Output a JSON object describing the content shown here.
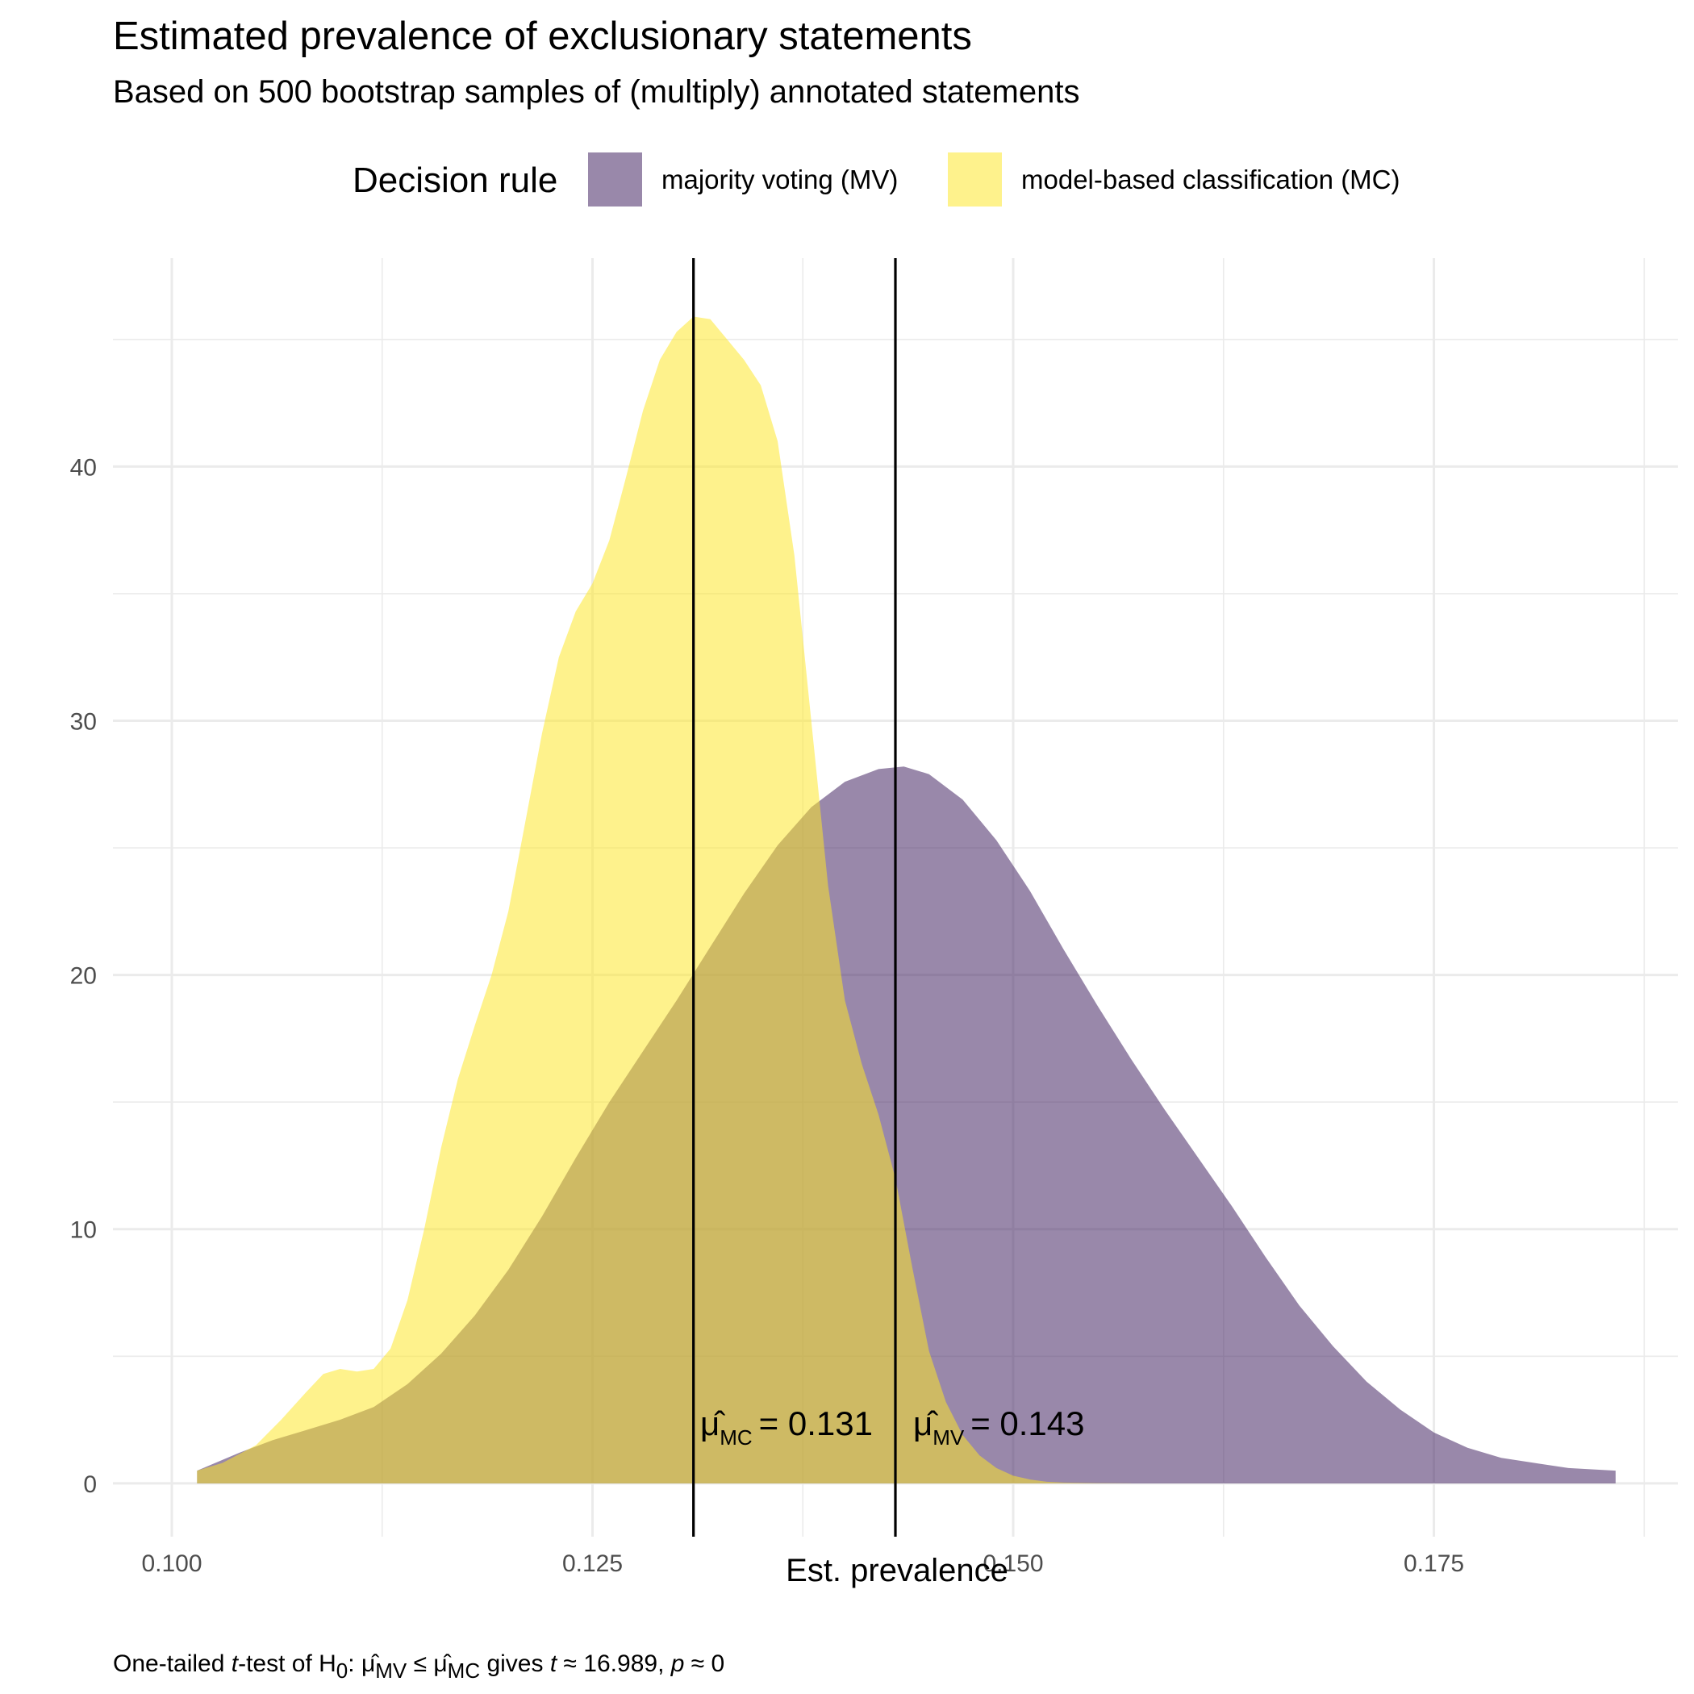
{
  "chart_data": {
    "type": "area",
    "title": "Estimated prevalence of exclusionary statements",
    "subtitle": "Based on 500 bootstrap samples of (multiply) annotated statements",
    "xlabel": "Est. prevalence",
    "ylabel": "",
    "xlim": [
      0.0965,
      0.1895
    ],
    "ylim": [
      -2.1,
      48.2
    ],
    "x_ticks": [
      0.1,
      0.125,
      0.15,
      0.175
    ],
    "x_tick_labels": [
      "0.100",
      "0.125",
      "0.150",
      "0.175"
    ],
    "y_ticks": [
      0,
      10,
      20,
      30,
      40
    ],
    "y_tick_labels": [
      "0",
      "10",
      "20",
      "30",
      "40"
    ],
    "grid": true,
    "legend": {
      "title": "Decision rule",
      "position": "top",
      "items": [
        "majority voting (MV)",
        "model-based classification (MC)"
      ]
    },
    "series": [
      {
        "name": "majority voting (MV)",
        "color": "#3f1f5e",
        "opacity": 0.53,
        "x": [
          0.1015,
          0.104,
          0.106,
          0.108,
          0.11,
          0.112,
          0.114,
          0.116,
          0.118,
          0.12,
          0.122,
          0.124,
          0.126,
          0.128,
          0.13,
          0.132,
          0.134,
          0.136,
          0.138,
          0.14,
          0.142,
          0.1435,
          0.145,
          0.147,
          0.149,
          0.151,
          0.153,
          0.155,
          0.157,
          0.159,
          0.161,
          0.163,
          0.165,
          0.167,
          0.169,
          0.171,
          0.173,
          0.175,
          0.177,
          0.179,
          0.181,
          0.183,
          0.1858
        ],
        "y": [
          0.5,
          1.2,
          1.7,
          2.1,
          2.5,
          3.0,
          3.9,
          5.1,
          6.6,
          8.4,
          10.5,
          12.8,
          15.0,
          17.0,
          19.0,
          21.1,
          23.2,
          25.1,
          26.6,
          27.6,
          28.1,
          28.2,
          27.9,
          26.9,
          25.3,
          23.3,
          21.0,
          18.8,
          16.7,
          14.7,
          12.8,
          10.9,
          8.9,
          7.0,
          5.4,
          4.0,
          2.9,
          2.0,
          1.4,
          1.0,
          0.8,
          0.6,
          0.5
        ]
      },
      {
        "name": "model-based classification (MC)",
        "color": "#fde725",
        "opacity": 0.53,
        "x": [
          0.1015,
          0.103,
          0.105,
          0.1065,
          0.108,
          0.109,
          0.11,
          0.111,
          0.112,
          0.113,
          0.114,
          0.115,
          0.116,
          0.117,
          0.118,
          0.119,
          0.12,
          0.121,
          0.122,
          0.123,
          0.124,
          0.125,
          0.126,
          0.127,
          0.128,
          0.129,
          0.13,
          0.131,
          0.132,
          0.133,
          0.134,
          0.135,
          0.136,
          0.137,
          0.138,
          0.139,
          0.14,
          0.141,
          0.142,
          0.143,
          0.144,
          0.145,
          0.146,
          0.147,
          0.148,
          0.149,
          0.15,
          0.151,
          0.152,
          0.153,
          0.155,
          0.157
        ],
        "y": [
          0.5,
          0.8,
          1.5,
          2.5,
          3.6,
          4.3,
          4.5,
          4.4,
          4.5,
          5.3,
          7.2,
          10.0,
          13.2,
          15.9,
          18.0,
          20.0,
          22.5,
          26.0,
          29.5,
          32.5,
          34.3,
          35.4,
          37.1,
          39.6,
          42.2,
          44.2,
          45.3,
          45.9,
          45.8,
          45.0,
          44.2,
          43.2,
          41.0,
          36.5,
          30.0,
          23.5,
          19.0,
          16.5,
          14.5,
          12.0,
          8.5,
          5.2,
          3.2,
          1.9,
          1.1,
          0.6,
          0.3,
          0.15,
          0.06,
          0.03,
          0.01,
          0.0
        ]
      }
    ],
    "vlines": [
      {
        "x": 0.131,
        "label": "MC",
        "value": "0.131"
      },
      {
        "x": 0.143,
        "label": "MV",
        "value": "0.143"
      }
    ]
  },
  "annotations": {
    "mc_symbol": "μ̂",
    "mc_sub": "MC",
    "mc_eq": "= 0.131",
    "mv_symbol": "μ̂",
    "mv_sub": "MV",
    "mv_eq": "= 0.143"
  },
  "caption": {
    "part1": "One-tailed ",
    "t1": "t",
    "part2": "-test of H",
    "sub0": "0",
    "part3": ":  ",
    "mu1": "μ̂",
    "mv": "MV",
    "leq": " ≤ ",
    "mu2": "μ̂",
    "mc": "MC",
    "part4": " gives ",
    "t2": "t",
    "part5": " ≈ 16.989,  ",
    "p": "p",
    "part6": " ≈ 0"
  }
}
